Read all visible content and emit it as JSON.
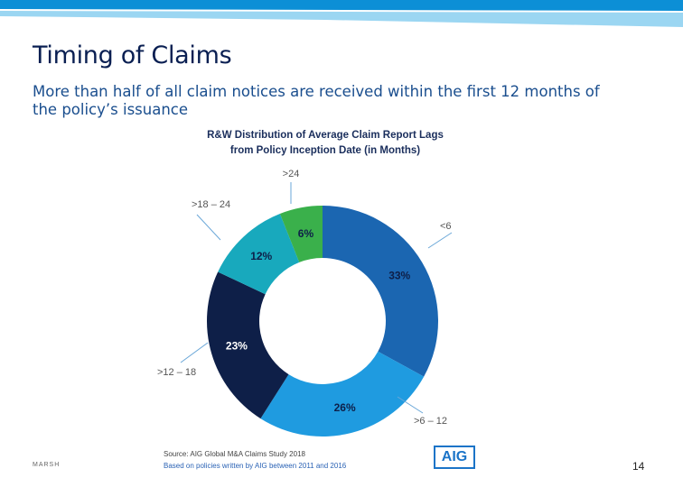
{
  "slide": {
    "title": "Timing of Claims",
    "subtitle": "More than half of all claim notices are received within the first 12 months of the policy’s issuance",
    "page_number": "14",
    "footer_brand": "MARSH",
    "source_line": "Source: AIG Global M&A Claims Study 2018",
    "source_note": "Based on policies written by AIG between 2011 and 2016",
    "logo_text": "AIG"
  },
  "colors": {
    "band_dark": "#0c8fd6",
    "band_light": "#9bd6f2",
    "lt6": "#1b66b1",
    "6to12": "#1f9be0",
    "12to18": "#0e1f48",
    "18to24": "#18a9bd",
    "gt24": "#3ab04b"
  },
  "chart_data": {
    "type": "pie",
    "title": "R&W Distribution of Average Claim Report Lags from Policy Inception Date (in Months)",
    "title_lines": [
      "R&W Distribution of Average Claim Report Lags",
      "from Policy Inception Date (in Months)"
    ],
    "donut": true,
    "categories": [
      "<6",
      ">6 – 12",
      ">12 – 18",
      ">18 – 24",
      ">24"
    ],
    "values": [
      33,
      26,
      23,
      12,
      6
    ],
    "value_labels": [
      "33%",
      "26%",
      "23%",
      "12%",
      "6%"
    ],
    "color_keys": [
      "lt6",
      "6to12",
      "12to18",
      "18to24",
      "gt24"
    ],
    "label_colors": [
      "#0e1f48",
      "#0e1f48",
      "#ffffff",
      "#0e1f48",
      "#0e1f48"
    ]
  }
}
